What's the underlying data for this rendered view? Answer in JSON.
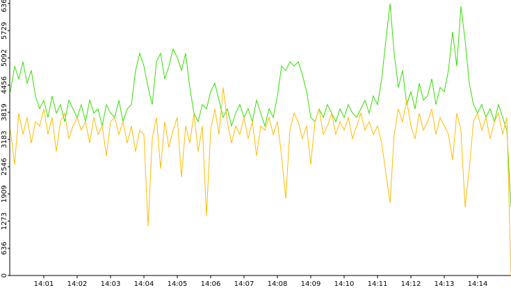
{
  "chart_data": {
    "type": "line",
    "x": [
      0,
      0.125,
      0.25,
      0.375,
      0.5,
      0.625,
      0.75,
      0.875,
      1,
      1.125,
      1.25,
      1.375,
      1.5,
      1.625,
      1.75,
      1.875,
      2,
      2.125,
      2.25,
      2.375,
      2.5,
      2.625,
      2.75,
      2.875,
      3,
      3.125,
      3.25,
      3.375,
      3.5,
      3.625,
      3.75,
      3.875,
      4,
      4.125,
      4.25,
      4.375,
      4.5,
      4.625,
      4.75,
      4.875,
      5,
      5.125,
      5.25,
      5.375,
      5.5,
      5.625,
      5.75,
      5.875,
      6,
      6.125,
      6.25,
      6.375,
      6.5,
      6.625,
      6.75,
      6.875,
      7,
      7.125,
      7.25,
      7.375,
      7.5,
      7.625,
      7.75,
      7.875,
      8,
      8.125,
      8.25,
      8.375,
      8.5,
      8.625,
      8.75,
      8.875,
      9,
      9.125,
      9.25,
      9.375,
      9.5,
      9.625,
      9.75,
      9.875,
      10,
      10.125,
      10.25,
      10.375,
      10.5,
      10.625,
      10.75,
      10.875,
      11,
      11.125,
      11.25,
      11.375,
      11.5,
      11.625,
      11.75,
      11.875,
      12,
      12.125,
      12.25,
      12.375,
      12.5,
      12.625,
      12.75,
      12.875,
      13,
      13.125,
      13.25,
      13.375,
      13.5,
      13.625,
      13.75,
      13.875,
      14,
      14.125,
      14.25,
      14.375,
      14.5,
      14.625,
      14.75,
      14.875,
      15
    ],
    "series": [
      {
        "color": "#33dd00",
        "values": [
          4300,
          4900,
          4600,
          5000,
          4500,
          4800,
          4200,
          3900,
          4100,
          3700,
          4200,
          3800,
          4000,
          3600,
          4100,
          3900,
          3700,
          4000,
          3600,
          4100,
          3800,
          3900,
          3500,
          4000,
          3800,
          3700,
          4100,
          3600,
          3900,
          4000,
          4800,
          5200,
          4900,
          4400,
          4000,
          5000,
          5200,
          4600,
          4900,
          5300,
          5100,
          4800,
          5200,
          4400,
          3800,
          3600,
          4000,
          3900,
          4300,
          4500,
          4100,
          3700,
          3900,
          3500,
          3800,
          4000,
          3700,
          3900,
          3600,
          4100,
          3800,
          3500,
          3900,
          3700,
          4200,
          4900,
          4800,
          5000,
          4900,
          5000,
          4700,
          4300,
          3700,
          3600,
          3900,
          3700,
          4000,
          3800,
          3600,
          3900,
          3700,
          4000,
          3800,
          3700,
          3900,
          4100,
          3800,
          4200,
          4000,
          4600,
          5500,
          6366,
          5200,
          4400,
          4800,
          4000,
          4300,
          3900,
          4500,
          4100,
          4200,
          4600,
          4000,
          4400,
          4300,
          4800,
          5700,
          4900,
          6300,
          5500,
          4500,
          4000,
          3800,
          4000,
          3700,
          3900,
          3600,
          4000,
          3700,
          3400,
          1600
        ]
      },
      {
        "color": "#ffbb00",
        "values": [
          3400,
          2600,
          3800,
          3300,
          3700,
          3100,
          3600,
          3500,
          3900,
          3300,
          3700,
          2900,
          3600,
          3800,
          3200,
          3500,
          3700,
          3400,
          3600,
          3100,
          3700,
          3300,
          3500,
          2800,
          3600,
          3700,
          3300,
          3600,
          3100,
          3500,
          2900,
          3400,
          3300,
          1150,
          3200,
          3700,
          2500,
          3600,
          3000,
          3400,
          3700,
          2300,
          3500,
          3100,
          3800,
          2900,
          3500,
          1400,
          3400,
          3900,
          3300,
          4400,
          3600,
          3100,
          3500,
          3300,
          3700,
          3200,
          3600,
          2800,
          3500,
          3400,
          3700,
          3300,
          3600,
          2800,
          1800,
          3400,
          3800,
          3600,
          3200,
          3500,
          2600,
          3600,
          3900,
          3300,
          3500,
          3800,
          3300,
          3600,
          3400,
          3700,
          3200,
          3500,
          3800,
          3400,
          3600,
          3300,
          3500,
          3100,
          2400,
          1700,
          3300,
          3900,
          3600,
          4100,
          3500,
          3200,
          3800,
          3400,
          3600,
          3900,
          3300,
          3700,
          3500,
          3300,
          2700,
          3800,
          3400,
          1600,
          2500,
          3600,
          3800,
          3400,
          3700,
          3200,
          3600,
          3800,
          3300,
          3700,
          0
        ]
      }
    ],
    "xlim": [
      0,
      15
    ],
    "xticks": [
      {
        "value": 1,
        "label": "14:01"
      },
      {
        "value": 2,
        "label": "14:02"
      },
      {
        "value": 3,
        "label": "14:03"
      },
      {
        "value": 4,
        "label": "14:04"
      },
      {
        "value": 5,
        "label": "14:05"
      },
      {
        "value": 6,
        "label": "14:06"
      },
      {
        "value": 7,
        "label": "14:07"
      },
      {
        "value": 8,
        "label": "14:08"
      },
      {
        "value": 9,
        "label": "14:09"
      },
      {
        "value": 10,
        "label": "14:10"
      },
      {
        "value": 11,
        "label": "14:11"
      },
      {
        "value": 12,
        "label": "14:12"
      },
      {
        "value": 13,
        "label": "14:13"
      },
      {
        "value": 14,
        "label": "14:14"
      }
    ],
    "ylim": [
      0,
      6366
    ],
    "yticks": [
      0,
      636,
      1273,
      1909,
      2546,
      3183,
      3819,
      4456,
      5092,
      5729,
      6366
    ]
  }
}
